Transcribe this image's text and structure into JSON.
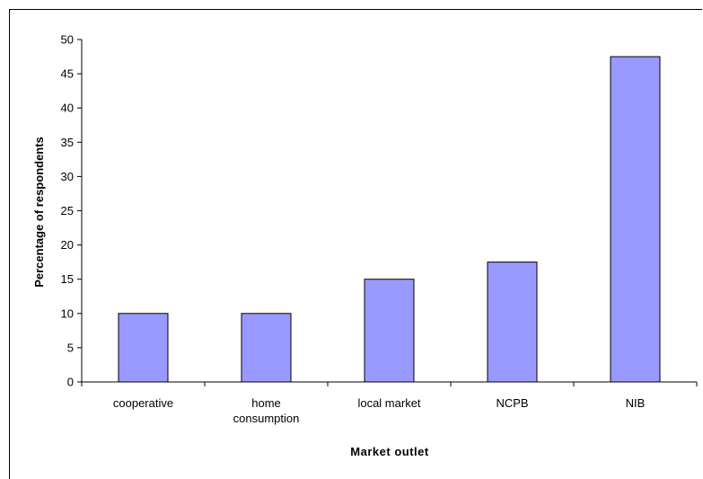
{
  "chart_data": {
    "type": "bar",
    "categories": [
      "cooperative",
      "home consumption",
      "local market",
      "NCPB",
      "NIB"
    ],
    "category_labels": [
      [
        "cooperative"
      ],
      [
        "home",
        "consumption"
      ],
      [
        "local market"
      ],
      [
        "NCPB"
      ],
      [
        "NIB"
      ]
    ],
    "values": [
      10,
      10,
      15,
      17.5,
      47.5
    ],
    "xlabel": "Market outlet",
    "ylabel": "Percentage of respondents",
    "ylim": [
      0,
      50
    ],
    "yticks": [
      0,
      5,
      10,
      15,
      20,
      25,
      30,
      35,
      40,
      45,
      50
    ],
    "grid": false,
    "legend": "none",
    "bar_color": "#9999ff",
    "bar_edge_color": "#000000"
  }
}
